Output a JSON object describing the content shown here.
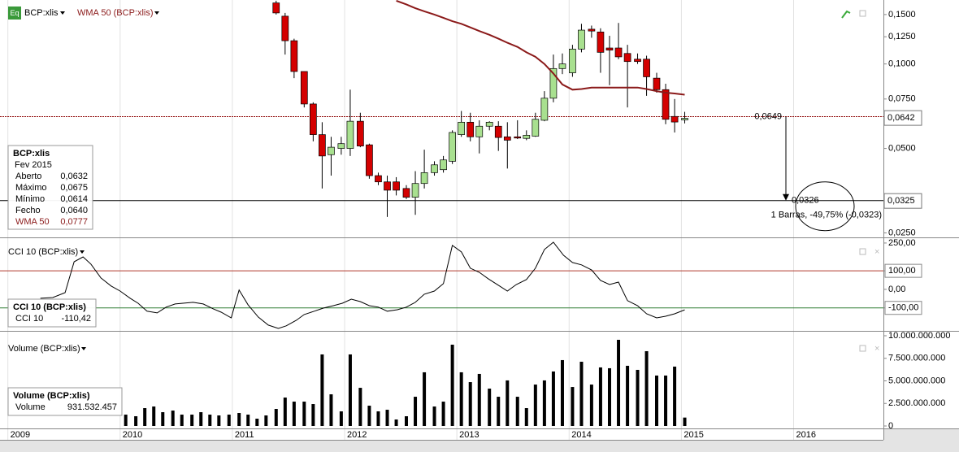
{
  "chart_data": [
    {
      "type": "candlestick",
      "symbol_icon": "Eq",
      "title": "BCP:xlis",
      "log_scale": true,
      "xlim": [
        2008.93,
        2016.8
      ],
      "ylim": [
        0.0241,
        0.169
      ],
      "yticks": [
        {
          "value": 0.025,
          "label": "0,0250"
        },
        {
          "value": 0.05,
          "label": "0,0500"
        },
        {
          "value": 0.075,
          "label": "0,0750"
        },
        {
          "value": 0.1,
          "label": "0,1000"
        },
        {
          "value": 0.125,
          "label": "0,1250"
        },
        {
          "value": 0.15,
          "label": "0,1500"
        }
      ],
      "up_color": "#a8e08f",
      "down_color": "#d40000",
      "x": [
        2011.39,
        2011.47,
        2011.55,
        2011.64,
        2011.72,
        2011.8,
        2011.88,
        2011.97,
        2012.05,
        2012.14,
        2012.22,
        2012.3,
        2012.38,
        2012.46,
        2012.55,
        2012.63,
        2012.71,
        2012.8,
        2012.88,
        2012.96,
        2013.04,
        2013.12,
        2013.2,
        2013.29,
        2013.37,
        2013.45,
        2013.54,
        2013.62,
        2013.7,
        2013.78,
        2013.86,
        2013.94,
        2014.03,
        2014.11,
        2014.2,
        2014.28,
        2014.36,
        2014.44,
        2014.52,
        2014.61,
        2014.69,
        2014.78,
        2014.86,
        2014.94,
        2015.03
      ],
      "open": [
        0.165,
        0.148,
        0.121,
        0.094,
        0.072,
        0.056,
        0.0475,
        0.05,
        0.05,
        0.0625,
        0.0515,
        0.04,
        0.038,
        0.038,
        0.036,
        0.0335,
        0.0375,
        0.041,
        0.042,
        0.045,
        0.056,
        0.062,
        0.055,
        0.06,
        0.06,
        0.055,
        0.055,
        0.0543,
        0.0553,
        0.063,
        0.0755,
        0.0963,
        0.093,
        0.113,
        0.133,
        0.13,
        0.114,
        0.114,
        0.109,
        0.104,
        0.104,
        0.089,
        0.081,
        0.065,
        0.0632
      ],
      "high": [
        0.168,
        0.152,
        0.123,
        0.094,
        0.073,
        0.062,
        0.055,
        0.055,
        0.081,
        0.067,
        0.052,
        0.041,
        0.04,
        0.0395,
        0.037,
        0.0415,
        0.0495,
        0.045,
        0.047,
        0.058,
        0.068,
        0.067,
        0.063,
        0.0625,
        0.0625,
        0.062,
        0.063,
        0.058,
        0.067,
        0.08,
        0.108,
        0.109,
        0.117,
        0.139,
        0.137,
        0.134,
        0.126,
        0.14,
        0.117,
        0.109,
        0.107,
        0.093,
        0.085,
        0.075,
        0.0675
      ],
      "low": [
        0.15,
        0.108,
        0.089,
        0.07,
        0.053,
        0.036,
        0.04,
        0.0475,
        0.047,
        0.0505,
        0.039,
        0.037,
        0.0285,
        0.034,
        0.033,
        0.029,
        0.036,
        0.04,
        0.041,
        0.044,
        0.055,
        0.053,
        0.048,
        0.058,
        0.049,
        0.0424,
        0.054,
        0.0535,
        0.055,
        0.0625,
        0.073,
        0.092,
        0.09,
        0.11,
        0.124,
        0.093,
        0.084,
        0.104,
        0.07,
        0.1,
        0.077,
        0.079,
        0.061,
        0.057,
        0.0614
      ],
      "close": [
        0.152,
        0.121,
        0.094,
        0.072,
        0.056,
        0.047,
        0.0505,
        0.052,
        0.0625,
        0.051,
        0.04,
        0.038,
        0.0355,
        0.0355,
        0.0335,
        0.0375,
        0.041,
        0.0437,
        0.0455,
        0.057,
        0.062,
        0.055,
        0.06,
        0.062,
        0.0547,
        0.0535,
        0.0545,
        0.0557,
        0.0635,
        0.0755,
        0.0963,
        0.1,
        0.113,
        0.132,
        0.131,
        0.11,
        0.112,
        0.106,
        0.102,
        0.102,
        0.09,
        0.081,
        0.0635,
        0.0621,
        0.064
      ],
      "overlays": [
        {
          "name": "WMA 50 (BCP:xlis)",
          "color": "#8b1a1a",
          "values": [
            null,
            null,
            null,
            null,
            null,
            null,
            null,
            null,
            null,
            null,
            null,
            null,
            null,
            0.168,
            0.163,
            0.158,
            0.154,
            0.15,
            0.146,
            0.142,
            0.139,
            0.135,
            0.131,
            0.127,
            0.123,
            0.119,
            0.115,
            0.11,
            0.106,
            0.1,
            0.0925,
            0.0845,
            0.081,
            0.0814,
            0.0824,
            0.0824,
            0.0824,
            0.0824,
            0.0824,
            0.0824,
            0.0814,
            0.08,
            0.079,
            0.0785,
            0.0777
          ]
        }
      ],
      "hlines": [
        {
          "value": 0.0649,
          "label": "0,0649",
          "color": "#8b0000"
        },
        {
          "value": 0.0326,
          "label": "0,0326",
          "color": "#000000"
        }
      ],
      "price_labels": [
        {
          "value": 0.0642,
          "label": "0,0642"
        },
        {
          "value": 0.0325,
          "label": "0,0325"
        }
      ],
      "measure_label": "1 Barras, -49,75% (-0,0323)",
      "info": {
        "title": "BCP:xlis",
        "date": "Fev 2015",
        "rows": [
          {
            "label": "Aberto",
            "value": "0,0632"
          },
          {
            "label": "Máximo",
            "value": "0,0675"
          },
          {
            "label": "Mínimo",
            "value": "0,0614"
          },
          {
            "label": "Fecho",
            "value": "0,0640"
          },
          {
            "label": "WMA 50",
            "value": "0,0777"
          }
        ]
      }
    },
    {
      "type": "line",
      "title": "CCI 10 (BCP:xlis)",
      "xlim": [
        2008.93,
        2016.8
      ],
      "ylim": [
        -224,
        276
      ],
      "yticks": [
        {
          "value": 250,
          "label": "250,00"
        },
        {
          "value": 100,
          "label": "100,00"
        },
        {
          "value": 0,
          "label": "0,00"
        },
        {
          "value": -100,
          "label": "-100,00"
        }
      ],
      "hlines": [
        {
          "value": 100,
          "color": "#b03a2e"
        },
        {
          "value": -100,
          "color": "#2e7d32"
        }
      ],
      "x": [
        2009.29,
        2009.4,
        2009.51,
        2009.59,
        2009.67,
        2009.74,
        2009.83,
        2009.92,
        2010.0,
        2010.09,
        2010.16,
        2010.24,
        2010.33,
        2010.41,
        2010.49,
        2010.65,
        2010.74,
        2010.83,
        2010.9,
        2010.99,
        2011.06,
        2011.14,
        2011.23,
        2011.32,
        2011.41,
        2011.48,
        2011.57,
        2011.64,
        2011.73,
        2011.81,
        2011.9,
        2011.98,
        2012.06,
        2012.14,
        2012.22,
        2012.3,
        2012.38,
        2012.47,
        2012.55,
        2012.63,
        2012.71,
        2012.8,
        2012.88,
        2012.96,
        2013.04,
        2013.12,
        2013.2,
        2013.28,
        2013.37,
        2013.45,
        2013.53,
        2013.62,
        2013.7,
        2013.78,
        2013.86,
        2013.95,
        2014.03,
        2014.11,
        2014.2,
        2014.28,
        2014.36,
        2014.44,
        2014.52,
        2014.61,
        2014.69,
        2014.78,
        2014.86,
        2014.94,
        2015.03
      ],
      "series": [
        {
          "name": "CCI 10",
          "color": "#000000",
          "values": [
            -48,
            -44,
            -18,
            149,
            175,
            136,
            61,
            18,
            -9,
            -48,
            -75,
            -118,
            -127,
            -96,
            -79,
            -70,
            -79,
            -105,
            -123,
            -154,
            -4,
            -83,
            -149,
            -193,
            -211,
            -197,
            -167,
            -136,
            -118,
            -101,
            -88,
            -75,
            -53,
            -66,
            -88,
            -96,
            -118,
            -110,
            -96,
            -70,
            -26,
            -9,
            31,
            237,
            202,
            114,
            92,
            57,
            22,
            -9,
            26,
            53,
            114,
            215,
            254,
            184,
            145,
            132,
            105,
            48,
            26,
            39,
            -61,
            -88,
            -132,
            -154,
            -145,
            -132,
            -110.42
          ]
        }
      ],
      "info": {
        "title": "CCI 10 (BCP:xlis)",
        "rows": [
          {
            "label": "CCI 10",
            "value": "-110,42"
          }
        ]
      }
    },
    {
      "type": "bar",
      "title": "Volume (BCP:xlis)",
      "color": "#000000",
      "xlim": [
        2008.93,
        2016.8
      ],
      "ylim": [
        -270000000,
        10450000000
      ],
      "xticks": [
        2009,
        2010,
        2011,
        2012,
        2013,
        2014,
        2015,
        2016
      ],
      "yticks": [
        {
          "value": 10000000000,
          "label": "10.000.000.000"
        },
        {
          "value": 7500000000,
          "label": "7.500.000.000"
        },
        {
          "value": 5000000000,
          "label": "5.000.000.000"
        },
        {
          "value": 2500000000,
          "label": "2.500.000.000"
        },
        0
      ],
      "x": [
        2010.05,
        2010.14,
        2010.22,
        2010.3,
        2010.38,
        2010.47,
        2010.55,
        2010.64,
        2010.72,
        2010.8,
        2010.88,
        2010.97,
        2011.06,
        2011.14,
        2011.22,
        2011.3,
        2011.39,
        2011.47,
        2011.55,
        2011.64,
        2011.72,
        2011.8,
        2011.88,
        2011.97,
        2012.05,
        2012.14,
        2012.22,
        2012.3,
        2012.38,
        2012.46,
        2012.55,
        2012.63,
        2012.71,
        2012.8,
        2012.88,
        2012.96,
        2013.04,
        2013.12,
        2013.2,
        2013.29,
        2013.37,
        2013.45,
        2013.54,
        2013.62,
        2013.7,
        2013.78,
        2013.86,
        2013.94,
        2014.03,
        2014.11,
        2014.2,
        2014.28,
        2014.36,
        2014.44,
        2014.52,
        2014.61,
        2014.69,
        2014.78,
        2014.86,
        2014.94,
        2015.03
      ],
      "values": [
        1260000000,
        1080000000,
        1980000000,
        2160000000,
        1530000000,
        1710000000,
        1260000000,
        1260000000,
        1530000000,
        1260000000,
        1170000000,
        1260000000,
        1440000000,
        1260000000,
        810000000,
        1170000000,
        1890000000,
        3150000000,
        2700000000,
        2700000000,
        2430000000,
        7930000000,
        3510000000,
        1620000000,
        7930000000,
        4230000000,
        2250000000,
        1620000000,
        1800000000,
        720000000,
        1080000000,
        3240000000,
        5950000000,
        2160000000,
        2700000000,
        9010000000,
        5950000000,
        4860000000,
        5770000000,
        4140000000,
        3240000000,
        5050000000,
        3240000000,
        1980000000,
        4590000000,
        5050000000,
        6040000000,
        7300000000,
        4320000000,
        7120000000,
        4590000000,
        6490000000,
        6400000000,
        9550000000,
        6670000000,
        6220000000,
        8290000000,
        5590000000,
        5590000000,
        6580000000,
        931532457
      ],
      "info": {
        "title": "Volume (BCP:xlis)",
        "rows": [
          {
            "label": "Volume",
            "value": "931.532.457"
          }
        ]
      }
    }
  ]
}
